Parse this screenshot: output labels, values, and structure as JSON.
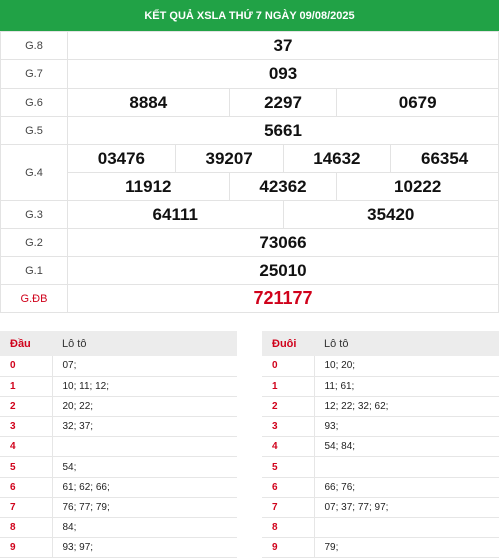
{
  "title": "KẾT QUẢ XSLA THỨ 7 NGÀY 09/08/2025",
  "prizes": {
    "g8": {
      "label": "G.8",
      "values": [
        "37"
      ]
    },
    "g7": {
      "label": "G.7",
      "values": [
        "093"
      ]
    },
    "g6": {
      "label": "G.6",
      "values": [
        "8884",
        "2297",
        "0679"
      ]
    },
    "g5": {
      "label": "G.5",
      "values": [
        "5661"
      ]
    },
    "g4": {
      "label": "G.4",
      "values": [
        "03476",
        "39207",
        "14632",
        "66354",
        "11912",
        "42362",
        "10222"
      ]
    },
    "g3": {
      "label": "G.3",
      "values": [
        "64111",
        "35420"
      ]
    },
    "g2": {
      "label": "G.2",
      "values": [
        "73066"
      ]
    },
    "g1": {
      "label": "G.1",
      "values": [
        "25010"
      ]
    },
    "gdb": {
      "label": "G.ĐB",
      "values": [
        "721177"
      ]
    }
  },
  "head_table": {
    "key_header": "Đầu",
    "value_header": "Lô tô",
    "rows": [
      {
        "key": "0",
        "value": "07;"
      },
      {
        "key": "1",
        "value": "10; 11; 12;"
      },
      {
        "key": "2",
        "value": "20; 22;"
      },
      {
        "key": "3",
        "value": "32; 37;"
      },
      {
        "key": "4",
        "value": ""
      },
      {
        "key": "5",
        "value": "54;"
      },
      {
        "key": "6",
        "value": "61; 62; 66;"
      },
      {
        "key": "7",
        "value": "76; 77; 79;"
      },
      {
        "key": "8",
        "value": "84;"
      },
      {
        "key": "9",
        "value": "93; 97;"
      }
    ]
  },
  "tail_table": {
    "key_header": "Đuôi",
    "value_header": "Lô tô",
    "rows": [
      {
        "key": "0",
        "value": "10; 20;"
      },
      {
        "key": "1",
        "value": "11; 61;"
      },
      {
        "key": "2",
        "value": "12; 22; 32; 62;"
      },
      {
        "key": "3",
        "value": "93;"
      },
      {
        "key": "4",
        "value": "54; 84;"
      },
      {
        "key": "5",
        "value": ""
      },
      {
        "key": "6",
        "value": "66; 76;"
      },
      {
        "key": "7",
        "value": "07; 37; 77; 97;"
      },
      {
        "key": "8",
        "value": ""
      },
      {
        "key": "9",
        "value": "79;"
      }
    ]
  },
  "colors": {
    "header_bg": "#21a246",
    "accent_red": "#d0021b"
  }
}
